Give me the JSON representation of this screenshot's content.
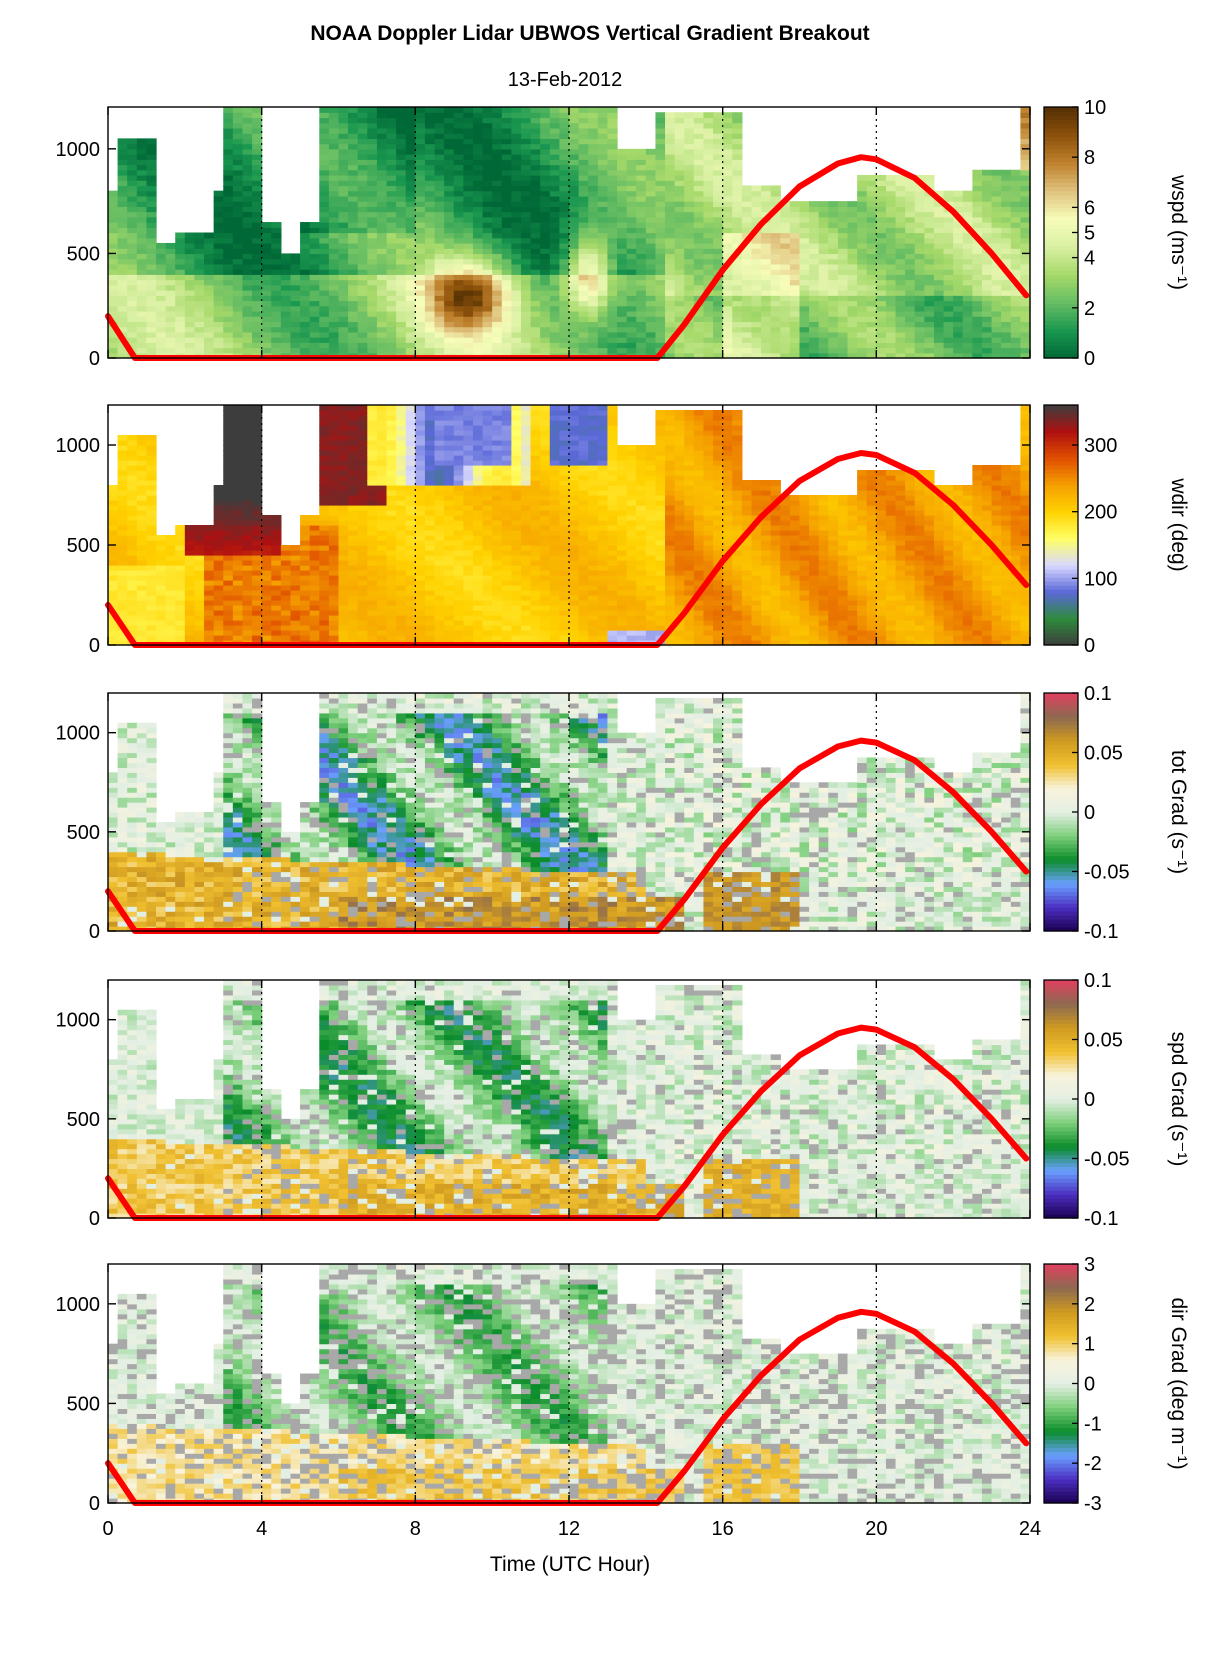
{
  "figure": {
    "title": "NOAA Doppler Lidar  UBWOS  Vertical Gradient Breakout",
    "subtitle": "13-Feb-2012",
    "xlabel": "Time (UTC Hour)"
  },
  "chart_data": [
    {
      "type": "heatmap",
      "name": "wspd",
      "cbar_label": "wspd (ms⁻¹)",
      "x_range": [
        0,
        24
      ],
      "x_ticks": [
        0,
        4,
        8,
        12,
        16,
        20,
        24
      ],
      "y_range": [
        0,
        1200
      ],
      "y_ticks": [
        0,
        500,
        1000
      ],
      "cbar_range": [
        0,
        10
      ],
      "cbar_ticks": [
        "0",
        "2",
        "4",
        "5",
        "6",
        "8",
        "10"
      ],
      "cbar_tick_values": [
        0,
        2,
        4,
        5,
        6,
        8,
        10
      ],
      "colormap": [
        "#006837",
        "#1a9850",
        "#66bd63",
        "#a6d96a",
        "#d9f0a3",
        "#f7fcb9",
        "#dfc27d",
        "#bf812d",
        "#8c510a",
        "#543005"
      ],
      "overlay_line": {
        "name": "",
        "color": "#ff0000",
        "x": [
          0,
          0.7,
          14.3,
          15,
          16,
          17,
          18,
          19,
          19.6,
          20,
          21,
          22,
          23,
          23.9
        ],
        "y": [
          200,
          0,
          0,
          160,
          420,
          640,
          820,
          930,
          960,
          950,
          860,
          700,
          500,
          300
        ]
      }
    },
    {
      "type": "heatmap",
      "name": "wdir",
      "cbar_label": "wdir (deg)",
      "x_range": [
        0,
        24
      ],
      "x_ticks": [
        0,
        4,
        8,
        12,
        16,
        20,
        24
      ],
      "y_range": [
        0,
        1200
      ],
      "y_ticks": [
        0,
        500,
        1000
      ],
      "cbar_range": [
        0,
        360
      ],
      "cbar_ticks": [
        "0",
        "100",
        "200",
        "300"
      ],
      "cbar_tick_values": [
        0,
        100,
        200,
        300
      ],
      "colormap": [
        "#3d3d3d",
        "#2e8b3d",
        "#5a68d8",
        "#d8d8ff",
        "#ffff66",
        "#ffd200",
        "#f5a000",
        "#e05000",
        "#b01010",
        "#3d3d3d"
      ],
      "overlay_line": {
        "name": "",
        "color": "#ff0000",
        "x": [
          0,
          0.7,
          14.3,
          15,
          16,
          17,
          18,
          19,
          19.6,
          20,
          21,
          22,
          23,
          23.9
        ],
        "y": [
          200,
          0,
          0,
          160,
          420,
          640,
          820,
          930,
          960,
          950,
          860,
          700,
          500,
          300
        ]
      }
    },
    {
      "type": "heatmap",
      "name": "tot Grad",
      "cbar_label": "tot Grad (s⁻¹)",
      "x_range": [
        0,
        24
      ],
      "x_ticks": [
        0,
        4,
        8,
        12,
        16,
        20,
        24
      ],
      "y_range": [
        0,
        1200
      ],
      "y_ticks": [
        0,
        500,
        1000
      ],
      "cbar_range": [
        -0.1,
        0.1
      ],
      "cbar_ticks": [
        "-0.1",
        "-0.05",
        "0",
        "0.05",
        "0.1"
      ],
      "cbar_tick_values": [
        -0.1,
        -0.05,
        0,
        0.05,
        0.1
      ],
      "colormap": [
        "#1a0050",
        "#4b2ec0",
        "#6aa0ff",
        "#0a8c2a",
        "#7ccf7a",
        "#e4efe4",
        "#f8f3dc",
        "#f0c030",
        "#d09a20",
        "#8c6a50",
        "#e04060"
      ],
      "overlay_line": {
        "name": "",
        "color": "#ff0000",
        "x": [
          0,
          0.7,
          14.3,
          15,
          16,
          17,
          18,
          19,
          19.6,
          20,
          21,
          22,
          23,
          23.9
        ],
        "y": [
          200,
          0,
          0,
          160,
          420,
          640,
          820,
          930,
          960,
          950,
          860,
          700,
          500,
          300
        ]
      }
    },
    {
      "type": "heatmap",
      "name": "spd Grad",
      "cbar_label": "spd Grad (s⁻¹)",
      "x_range": [
        0,
        24
      ],
      "x_ticks": [
        0,
        4,
        8,
        12,
        16,
        20,
        24
      ],
      "y_range": [
        0,
        1200
      ],
      "y_ticks": [
        0,
        500,
        1000
      ],
      "cbar_range": [
        -0.1,
        0.1
      ],
      "cbar_ticks": [
        "-0.1",
        "-0.05",
        "0",
        "0.05",
        "0.1"
      ],
      "cbar_tick_values": [
        -0.1,
        -0.05,
        0,
        0.05,
        0.1
      ],
      "colormap": [
        "#1a0050",
        "#4b2ec0",
        "#6aa0ff",
        "#0a8c2a",
        "#7ccf7a",
        "#e4efe4",
        "#f8f3dc",
        "#f0c030",
        "#d09a20",
        "#8c6a50",
        "#e04060"
      ],
      "overlay_line": {
        "name": "",
        "color": "#ff0000",
        "x": [
          0,
          0.7,
          14.3,
          15,
          16,
          17,
          18,
          19,
          19.6,
          20,
          21,
          22,
          23,
          23.9
        ],
        "y": [
          200,
          0,
          0,
          160,
          420,
          640,
          820,
          930,
          960,
          950,
          860,
          700,
          500,
          300
        ]
      }
    },
    {
      "type": "heatmap",
      "name": "dir Grad",
      "cbar_label": "dir Grad (deg m⁻¹)",
      "x_range": [
        0,
        24
      ],
      "x_ticks": [
        0,
        4,
        8,
        12,
        16,
        20,
        24
      ],
      "y_range": [
        0,
        1200
      ],
      "y_ticks": [
        0,
        500,
        1000
      ],
      "cbar_range": [
        -3,
        3
      ],
      "cbar_ticks": [
        "-3",
        "-2",
        "-1",
        "0",
        "1",
        "2",
        "3"
      ],
      "cbar_tick_values": [
        -3,
        -2,
        -1,
        0,
        1,
        2,
        3
      ],
      "colormap": [
        "#1a0050",
        "#4b2ec0",
        "#6aa0ff",
        "#0a8c2a",
        "#7ccf7a",
        "#e4efe4",
        "#f8f3dc",
        "#f0c030",
        "#d09a20",
        "#8c6a50",
        "#e04060"
      ],
      "overlay_line": {
        "name": "",
        "color": "#ff0000",
        "x": [
          0,
          0.7,
          14.3,
          15,
          16,
          17,
          18,
          19,
          19.6,
          20,
          21,
          22,
          23,
          23.9
        ],
        "y": [
          200,
          0,
          0,
          160,
          420,
          640,
          820,
          930,
          960,
          950,
          860,
          700,
          500,
          300
        ]
      }
    }
  ]
}
